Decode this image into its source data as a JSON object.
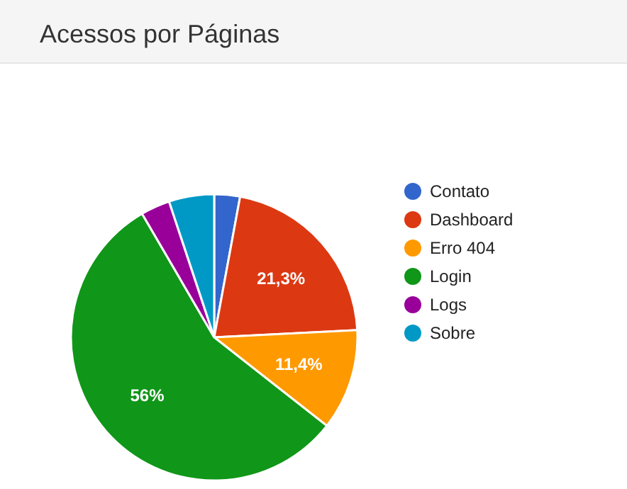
{
  "chart_data": {
    "type": "pie",
    "title": "Acessos por Páginas",
    "categories": [
      "Contato",
      "Dashboard",
      "Erro 404",
      "Login",
      "Logs",
      "Sobre"
    ],
    "values": [
      2.9,
      21.3,
      11.4,
      56,
      3.3,
      5.1
    ],
    "colors": [
      "#3366cc",
      "#dc3912",
      "#ff9900",
      "#109618",
      "#990099",
      "#0099c6"
    ],
    "value_labels": [
      null,
      "21,3%",
      "11,4%",
      "56%",
      null,
      null
    ],
    "legend": "right"
  }
}
